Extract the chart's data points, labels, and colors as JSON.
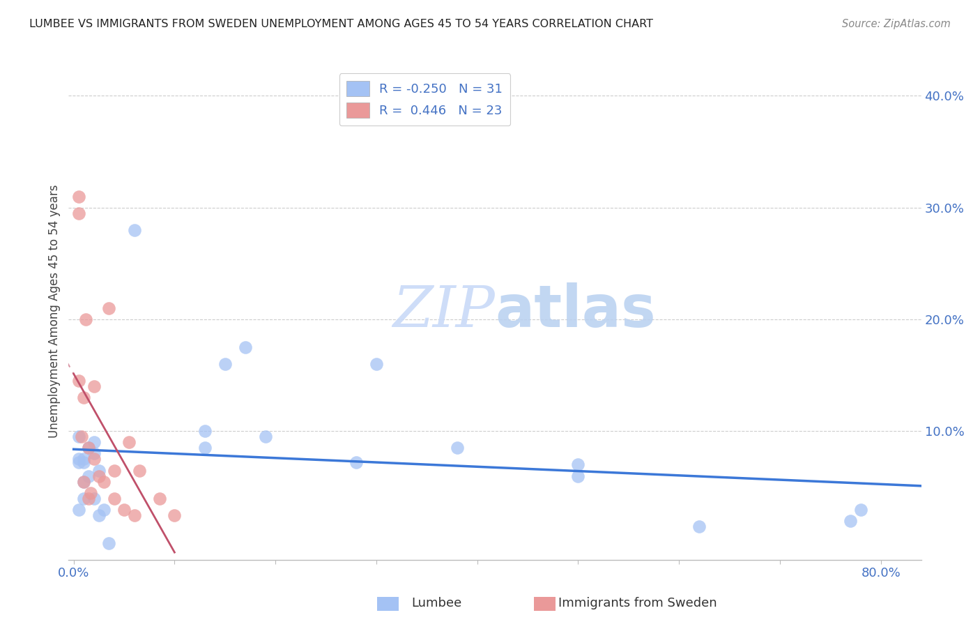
{
  "title": "LUMBEE VS IMMIGRANTS FROM SWEDEN UNEMPLOYMENT AMONG AGES 45 TO 54 YEARS CORRELATION CHART",
  "source": "Source: ZipAtlas.com",
  "axis_color": "#4472c4",
  "ylabel": "Unemployment Among Ages 45 to 54 years",
  "lumbee_R": "-0.250",
  "lumbee_N": "31",
  "sweden_R": "0.446",
  "sweden_N": "23",
  "blue_color": "#a4c2f4",
  "pink_color": "#ea9999",
  "blue_line_color": "#3c78d8",
  "pink_line_color": "#c0506a",
  "lumbee_points_x": [
    0.005,
    0.005,
    0.01,
    0.01,
    0.01,
    0.015,
    0.015,
    0.02,
    0.02,
    0.02,
    0.025,
    0.025,
    0.03,
    0.035,
    0.005,
    0.005,
    0.01,
    0.06,
    0.13,
    0.13,
    0.15,
    0.17,
    0.19,
    0.28,
    0.3,
    0.38,
    0.5,
    0.5,
    0.62,
    0.77,
    0.78
  ],
  "lumbee_points_y": [
    0.075,
    0.095,
    0.04,
    0.055,
    0.075,
    0.06,
    0.085,
    0.04,
    0.08,
    0.09,
    0.025,
    0.065,
    0.03,
    0.0,
    0.072,
    0.03,
    0.072,
    0.28,
    0.1,
    0.085,
    0.16,
    0.175,
    0.095,
    0.072,
    0.16,
    0.085,
    0.07,
    0.06,
    0.015,
    0.02,
    0.03
  ],
  "sweden_points_x": [
    0.005,
    0.005,
    0.005,
    0.008,
    0.01,
    0.01,
    0.012,
    0.015,
    0.015,
    0.017,
    0.02,
    0.02,
    0.025,
    0.03,
    0.035,
    0.04,
    0.04,
    0.05,
    0.055,
    0.06,
    0.065,
    0.085,
    0.1
  ],
  "sweden_points_y": [
    0.31,
    0.295,
    0.145,
    0.095,
    0.13,
    0.055,
    0.2,
    0.085,
    0.04,
    0.045,
    0.14,
    0.075,
    0.06,
    0.055,
    0.21,
    0.065,
    0.04,
    0.03,
    0.09,
    0.025,
    0.065,
    0.04,
    0.025
  ],
  "xlim": [
    -0.005,
    0.84
  ],
  "ylim": [
    -0.015,
    0.43
  ],
  "x_ticks": [
    0.0,
    0.1,
    0.2,
    0.3,
    0.4,
    0.5,
    0.6,
    0.7,
    0.8
  ],
  "x_tick_labels": [
    "0.0%",
    "",
    "",
    "",
    "",
    "",
    "",
    "",
    "80.0%"
  ],
  "y_ticks": [
    0.0,
    0.1,
    0.2,
    0.3,
    0.4
  ],
  "y_tick_labels": [
    "",
    "10.0%",
    "20.0%",
    "30.0%",
    "40.0%"
  ],
  "watermark_zip": "ZIP",
  "watermark_atlas": "atlas",
  "background_color": "#ffffff",
  "grid_color": "#cccccc",
  "bottom_legend_lumbee": "Lumbee",
  "bottom_legend_sweden": "Immigrants from Sweden"
}
